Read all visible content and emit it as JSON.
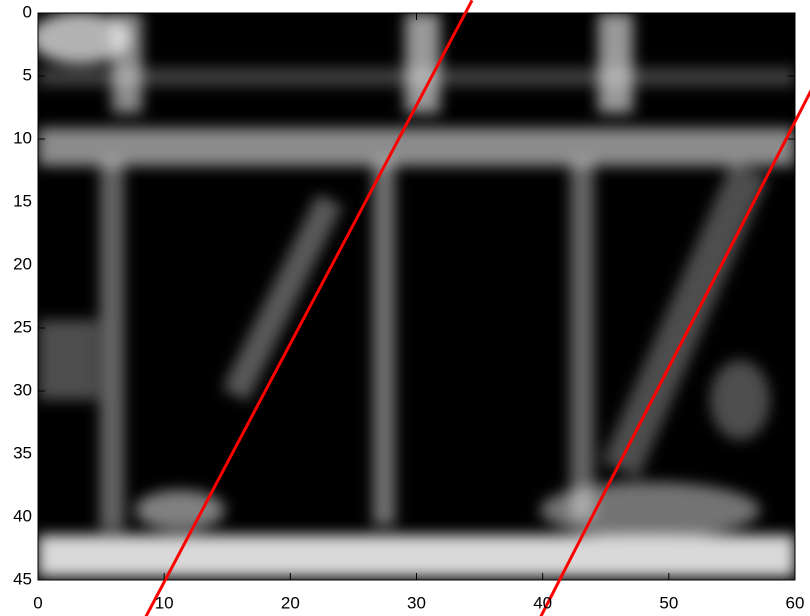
{
  "chart_data": {
    "type": "image",
    "xlim": [
      0,
      60
    ],
    "ylim": [
      0,
      45
    ],
    "y_reversed": true,
    "xticks": [
      0,
      10,
      20,
      30,
      40,
      50,
      60
    ],
    "yticks": [
      0,
      5,
      10,
      15,
      20,
      25,
      30,
      35,
      40,
      45
    ],
    "lines": [
      {
        "color": "#ff0000",
        "x": [
          8.5,
          34.4
        ],
        "y": [
          48,
          -1
        ]
      },
      {
        "color": "#ff0000",
        "x": [
          39.8,
          61.3
        ],
        "y": [
          48,
          6.1
        ]
      }
    ]
  }
}
